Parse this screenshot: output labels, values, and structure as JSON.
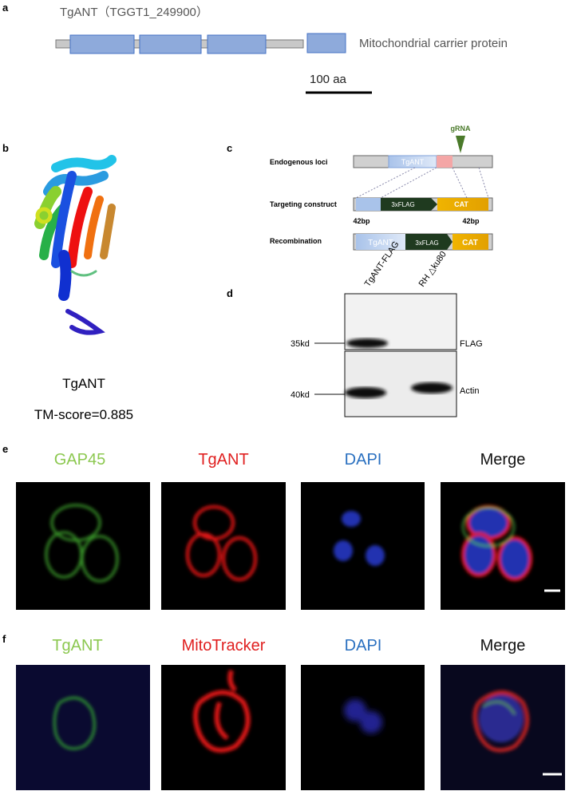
{
  "panel_a": {
    "label": "a",
    "title": "TgANT（TGGT1_249900）",
    "legend": "Mitochondrial carrier protein",
    "scale": "100 aa"
  },
  "panel_b": {
    "label": "b",
    "name": "TgANT",
    "score": "TM-score=0.885"
  },
  "panel_c": {
    "label": "c",
    "grna": "gRNA",
    "rows": [
      "Endogenous loci",
      "Targeting construct",
      "Recombination"
    ],
    "boxes": {
      "tgant": "TgANT",
      "flag": "3xFLAG",
      "cat": "CAT"
    },
    "homology": "42bp"
  },
  "panel_d": {
    "label": "d",
    "lanes": [
      "TgANT-FLAG",
      "RH △ku80"
    ],
    "markers": [
      "35kd",
      "40kd"
    ],
    "bands": [
      "FLAG",
      "Actin"
    ]
  },
  "panel_e": {
    "label": "e",
    "channels": [
      "GAP45",
      "TgANT",
      "DAPI",
      "Merge"
    ]
  },
  "panel_f": {
    "label": "f",
    "channels": [
      "TgANT",
      "MitoTracker",
      "DAPI",
      "Merge"
    ]
  }
}
